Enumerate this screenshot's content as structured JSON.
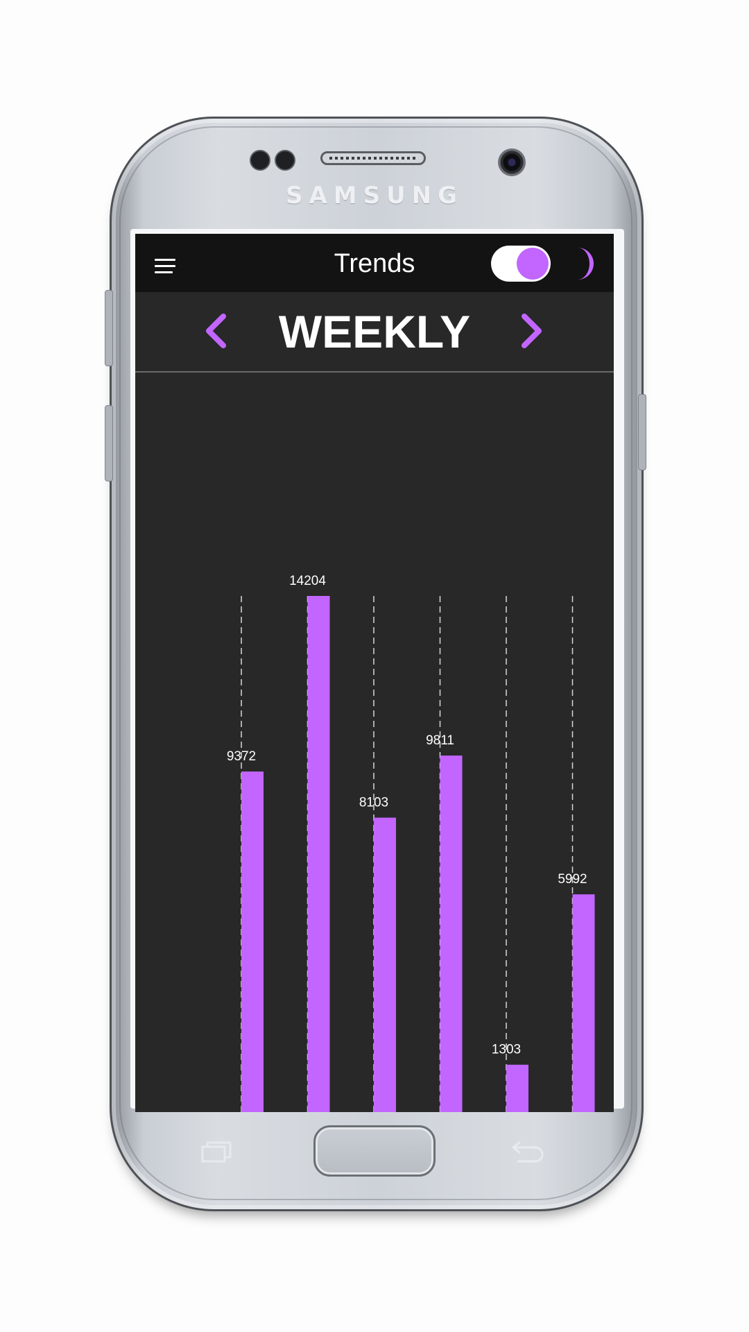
{
  "device": {
    "brand": "SAMSUNG"
  },
  "app_bar": {
    "title": "Trends",
    "dark_mode_enabled": true
  },
  "period": {
    "label": "WEEKLY"
  },
  "colors": {
    "accent": "#c266ff",
    "app_bar_bg": "#131313",
    "screen_bg": "#282828",
    "text": "#ffffff"
  },
  "icons": {
    "menu": "hamburger-menu-icon",
    "prev": "chevron-left-icon",
    "next": "chevron-right-icon",
    "theme": "moon-icon"
  },
  "chart_data": {
    "type": "bar",
    "values": [
      9372,
      14204,
      8103,
      9811,
      1303,
      5992
    ],
    "data_labels": [
      "9372",
      "14204",
      "8103",
      "9811",
      "1303",
      "5992"
    ],
    "grid": "vertical dashed lines",
    "title": "",
    "xlabel": "",
    "ylabel": ""
  }
}
